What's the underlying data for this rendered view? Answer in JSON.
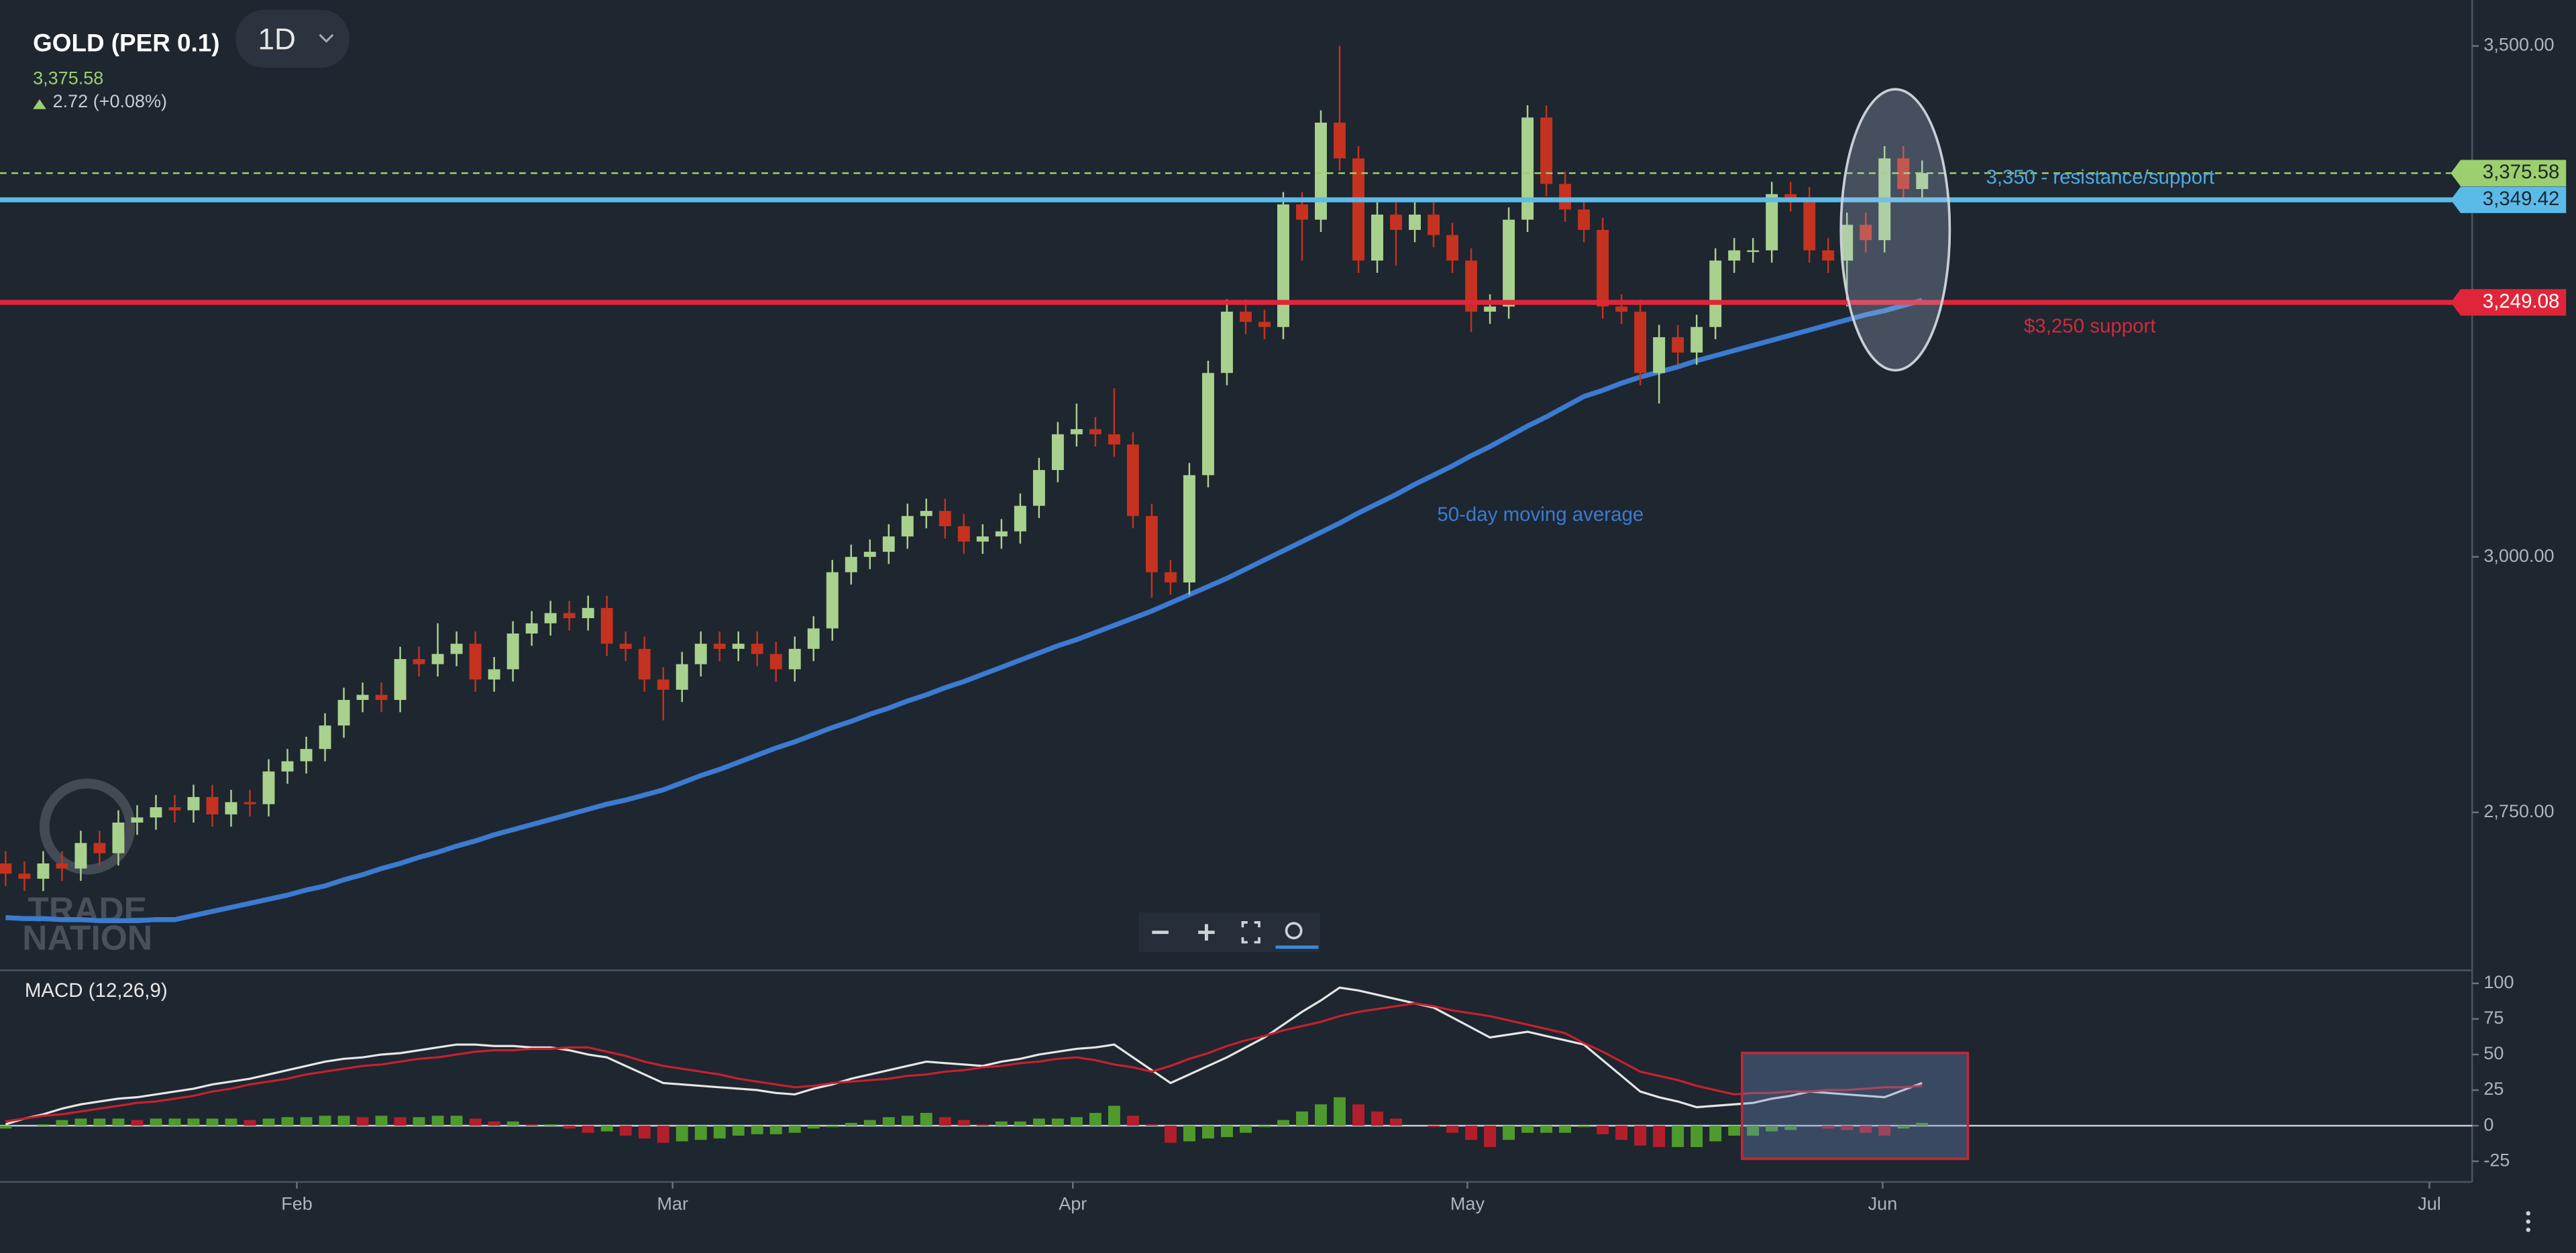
{
  "chart_data": [
    {
      "type": "candlestick",
      "title": "GOLD (PER 0.1)",
      "timeframe": "1D",
      "last": {
        "value": 3375.58,
        "label": "3,375.58"
      },
      "change": "2.72 (+0.08%)",
      "watermark": [
        "TRADE",
        "NATION"
      ],
      "up_color": "#a9d18e",
      "down_color": "#c5321f",
      "open": [
        2700,
        2690,
        2685,
        2700,
        2695,
        2720,
        2710,
        2740,
        2745,
        2755,
        2752,
        2765,
        2748,
        2760,
        2758,
        2790,
        2800,
        2812,
        2835,
        2860,
        2865,
        2860,
        2900,
        2895,
        2905,
        2915,
        2880,
        2890,
        2925,
        2935,
        2945,
        2940,
        2950,
        2915,
        2910,
        2880,
        2870,
        2895,
        2915,
        2910,
        2915,
        2905,
        2890,
        2910,
        2930,
        2985,
        3000,
        3005,
        3020,
        3040,
        3045,
        3030,
        3015,
        3020,
        3025,
        3050,
        3085,
        3120,
        3125,
        3120,
        3110,
        3040,
        2985,
        2975,
        3080,
        3180,
        3240,
        3230,
        3225,
        3345,
        3330,
        3425,
        3390,
        3290,
        3335,
        3320,
        3335,
        3315,
        3290,
        3240,
        3245,
        3330,
        3430,
        3365,
        3340,
        3320,
        3245,
        3240,
        3180,
        3215,
        3200,
        3225,
        3290,
        3300,
        3300,
        3355,
        3350,
        3300,
        3290,
        3325,
        3310,
        3390,
        3360
      ],
      "high": [
        2712,
        2702,
        2712,
        2712,
        2732,
        2732,
        2752,
        2757,
        2767,
        2767,
        2777,
        2777,
        2772,
        2772,
        2802,
        2812,
        2824,
        2847,
        2872,
        2877,
        2877,
        2912,
        2912,
        2935,
        2927,
        2927,
        2902,
        2937,
        2947,
        2957,
        2957,
        2962,
        2962,
        2927,
        2922,
        2892,
        2907,
        2927,
        2927,
        2927,
        2927,
        2917,
        2922,
        2942,
        2997,
        3012,
        3017,
        3032,
        3052,
        3057,
        3057,
        3042,
        3032,
        3037,
        3062,
        3097,
        3132,
        3150,
        3137,
        3165,
        3122,
        3052,
        2997,
        3092,
        3192,
        3252,
        3252,
        3242,
        3357,
        3357,
        3437,
        3500,
        3402,
        3347,
        3347,
        3347,
        3347,
        3327,
        3302,
        3257,
        3342,
        3442,
        3442,
        3377,
        3352,
        3332,
        3257,
        3252,
        3227,
        3227,
        3237,
        3302,
        3312,
        3312,
        3367,
        3367,
        3362,
        3312,
        3337,
        3337,
        3402,
        3402,
        3388
      ],
      "low": [
        2678,
        2673,
        2673,
        2683,
        2683,
        2698,
        2698,
        2728,
        2733,
        2740,
        2740,
        2736,
        2736,
        2746,
        2746,
        2778,
        2788,
        2800,
        2823,
        2848,
        2848,
        2848,
        2883,
        2883,
        2893,
        2868,
        2868,
        2878,
        2913,
        2923,
        2928,
        2928,
        2903,
        2898,
        2868,
        2840,
        2858,
        2883,
        2898,
        2898,
        2893,
        2878,
        2878,
        2898,
        2918,
        2973,
        2988,
        2993,
        3008,
        3028,
        3018,
        3003,
        3003,
        3008,
        3013,
        3038,
        3073,
        3108,
        3108,
        3098,
        3028,
        2960,
        2963,
        2963,
        3068,
        3168,
        3218,
        3213,
        3213,
        3290,
        3318,
        3378,
        3278,
        3278,
        3285,
        3308,
        3303,
        3278,
        3220,
        3228,
        3233,
        3318,
        3353,
        3328,
        3308,
        3233,
        3228,
        3168,
        3150,
        3188,
        3188,
        3213,
        3278,
        3288,
        3288,
        3338,
        3288,
        3278,
        3245,
        3298,
        3298,
        3348,
        3348
      ],
      "close": [
        2690,
        2685,
        2700,
        2695,
        2720,
        2710,
        2740,
        2745,
        2755,
        2752,
        2765,
        2748,
        2760,
        2758,
        2790,
        2800,
        2812,
        2835,
        2860,
        2865,
        2860,
        2900,
        2895,
        2905,
        2915,
        2880,
        2890,
        2925,
        2935,
        2945,
        2940,
        2950,
        2915,
        2910,
        2880,
        2870,
        2895,
        2915,
        2910,
        2915,
        2905,
        2890,
        2910,
        2930,
        2985,
        3000,
        3005,
        3020,
        3040,
        3045,
        3030,
        3015,
        3020,
        3025,
        3050,
        3085,
        3120,
        3125,
        3120,
        3110,
        3040,
        2985,
        2975,
        3080,
        3180,
        3240,
        3230,
        3225,
        3345,
        3330,
        3425,
        3390,
        3290,
        3335,
        3320,
        3335,
        3315,
        3290,
        3240,
        3245,
        3330,
        3430,
        3365,
        3340,
        3320,
        3245,
        3240,
        3180,
        3215,
        3200,
        3225,
        3290,
        3300,
        3300,
        3355,
        3350,
        3300,
        3290,
        3325,
        3310,
        3390,
        3360,
        3375.58
      ],
      "series": [
        {
          "color": "#3b7bd0",
          "values": [
            2647,
            2646,
            2646,
            2645,
            2645,
            2644,
            2644,
            2644,
            2645,
            2645,
            2649,
            2653,
            2657,
            2661,
            2665,
            2669,
            2674,
            2678,
            2684,
            2689,
            2695,
            2700,
            2706,
            2711,
            2717,
            2722,
            2728,
            2733,
            2738,
            2743,
            2748,
            2753,
            2758,
            2762,
            2767,
            2772,
            2779,
            2786,
            2792,
            2799,
            2806,
            2813,
            2819,
            2826,
            2833,
            2839,
            2846,
            2852,
            2859,
            2865,
            2872,
            2878,
            2885,
            2892,
            2899,
            2906,
            2913,
            2919,
            2926,
            2933,
            2940,
            2947,
            2955,
            2963,
            2971,
            2979,
            2988,
            2997,
            3006,
            3015,
            3024,
            3033,
            3043,
            3052,
            3061,
            3071,
            3080,
            3089,
            3099,
            3108,
            3118,
            3128,
            3137,
            3147,
            3157,
            3163,
            3170,
            3176,
            3181,
            3186,
            3192,
            3197,
            3202,
            3207,
            3212,
            3217,
            3222,
            3227,
            3232,
            3237,
            3241,
            3246,
            3251
          ]
        }
      ],
      "hlines": [
        {
          "value": 3375.58,
          "label": "3,375.58",
          "color": "#9ccf6d",
          "dashed": true
        },
        {
          "value": 3349.42,
          "label": "3,349.42",
          "color": "#5bbbe8"
        },
        {
          "value": 3249.08,
          "label": "3,249.08",
          "color": "#e0253a"
        }
      ],
      "annotations": [
        {
          "text": "3,350 - resistance/support",
          "color": "#4fa8dc"
        },
        {
          "text": "$3,250 support",
          "color": "#d22a3a"
        },
        {
          "text": "50-day moving average",
          "color": "#3b7bd0"
        }
      ],
      "ylim": [
        2597,
        3545
      ],
      "yticks": [
        {
          "value": 2750,
          "label": "2,750.00"
        },
        {
          "value": 3000,
          "label": "3,000.00"
        },
        {
          "value": 3500,
          "label": "3,500.00"
        }
      ],
      "xlim": [
        -0.3,
        131.1
      ],
      "xticks": [
        {
          "value": 15.5,
          "label": "Feb"
        },
        {
          "value": 35.5,
          "label": "Mar"
        },
        {
          "value": 56.8,
          "label": "Apr"
        },
        {
          "value": 77.8,
          "label": "May"
        },
        {
          "value": 99.9,
          "label": "Jun"
        },
        {
          "value": 129,
          "label": "Jul"
        }
      ]
    },
    {
      "type": "macd",
      "title": "MACD (12,26,9)",
      "series": [
        {
          "color": "#e6e6e6",
          "values": [
            1,
            5,
            8,
            12,
            15,
            17,
            19,
            20,
            22,
            24,
            26,
            29,
            31,
            33,
            36,
            39,
            42,
            45,
            47,
            48,
            50,
            51,
            53,
            55,
            57,
            57,
            56,
            56,
            55,
            55,
            53,
            50,
            48,
            42,
            36,
            30,
            29,
            28,
            27,
            26,
            25,
            23,
            22,
            26,
            29,
            33,
            36,
            39,
            42,
            45,
            44,
            43,
            42,
            45,
            47,
            50,
            52,
            54,
            55,
            57,
            48,
            39,
            30,
            36,
            42,
            48,
            55,
            62,
            71,
            80,
            88,
            97,
            95,
            92,
            89,
            86,
            83,
            76,
            69,
            62,
            64,
            66,
            63,
            60,
            57,
            46,
            35,
            24,
            20,
            17,
            13,
            14,
            15,
            16,
            19,
            21,
            24,
            23,
            22,
            21,
            20,
            25,
            30
          ]
        },
        {
          "color": "#c8202e",
          "values": [
            3,
            5,
            7,
            8,
            10,
            12,
            14,
            16,
            17,
            19,
            21,
            24,
            26,
            29,
            31,
            33,
            36,
            38,
            40,
            42,
            43,
            45,
            47,
            48,
            50,
            52,
            53,
            53,
            54,
            54,
            55,
            55,
            52,
            49,
            45,
            42,
            40,
            38,
            36,
            33,
            31,
            29,
            27,
            28,
            30,
            31,
            32,
            33,
            35,
            36,
            38,
            39,
            41,
            42,
            44,
            45,
            47,
            48,
            46,
            43,
            41,
            38,
            42,
            47,
            51,
            56,
            60,
            63,
            67,
            70,
            73,
            77,
            80,
            82,
            84,
            86,
            84,
            81,
            79,
            77,
            74,
            71,
            68,
            65,
            58,
            52,
            45,
            38,
            35,
            32,
            28,
            25,
            22,
            23,
            23,
            24,
            24,
            25,
            25,
            26,
            27,
            27,
            28
          ]
        }
      ],
      "histogram": [
        -2,
        0,
        1,
        4,
        5,
        5,
        5,
        4,
        5,
        5,
        5,
        5,
        5,
        4,
        5,
        6,
        6,
        7,
        7,
        6,
        7,
        6,
        6,
        7,
        7,
        5,
        3,
        3,
        1,
        1,
        -2,
        -5,
        -4,
        -7,
        -9,
        -12,
        -11,
        -10,
        -9,
        -7,
        -6,
        -6,
        -5,
        -2,
        -1,
        2,
        4,
        6,
        7,
        9,
        6,
        4,
        1,
        3,
        3,
        5,
        5,
        6,
        9,
        14,
        7,
        1,
        -12,
        -11,
        -9,
        -8,
        -5,
        -1,
        4,
        10,
        15,
        20,
        15,
        10,
        5,
        0,
        -1,
        -5,
        -10,
        -15,
        -10,
        -5,
        -5,
        -5,
        -1,
        -6,
        -10,
        -14,
        -15,
        -15,
        -15,
        -11,
        -7,
        -7,
        -4,
        -3,
        0,
        -2,
        -3,
        -5,
        -7,
        -2,
        2
      ],
      "up_color": "#4f9a2c",
      "down_color": "#b21f2b",
      "ylim": [
        -39.5,
        108
      ],
      "yticks": [
        -25,
        0,
        25,
        50,
        75,
        100
      ]
    }
  ]
}
